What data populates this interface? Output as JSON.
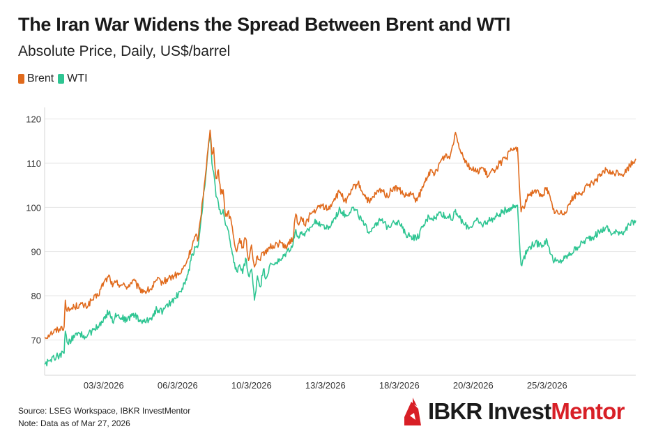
{
  "title": "The Iran War Widens the Spread Between Brent and WTI",
  "subtitle": "Absolute Price, Daily, US$/barrel",
  "legend": [
    {
      "name": "Brent",
      "color": "#e06a1c"
    },
    {
      "name": "WTI",
      "color": "#2ec592"
    }
  ],
  "footer": {
    "source": "Source: LSEG Workspace, IBKR InvestMentor",
    "note": "Note: Data as of Mar 27, 2026"
  },
  "logo": {
    "brand": "IBKR",
    "invest": "Invest",
    "mentor": "Mentor"
  },
  "chart_data": {
    "type": "line",
    "title": "The Iran War Widens the Spread Between Brent and WTI",
    "ylabel": "US$/barrel",
    "ylim": [
      62,
      122
    ],
    "yticks": [
      70,
      80,
      90,
      100,
      110,
      120
    ],
    "grid": true,
    "xlim": [
      0,
      100
    ],
    "xticks": [
      {
        "x": 10.0,
        "label": "03/3/2026"
      },
      {
        "x": 22.5,
        "label": "06/3/2026"
      },
      {
        "x": 35.0,
        "label": "10/3/2026"
      },
      {
        "x": 47.5,
        "label": "13/3/2026"
      },
      {
        "x": 60.0,
        "label": "18/3/2026"
      },
      {
        "x": 72.5,
        "label": "20/3/2026"
      },
      {
        "x": 85.0,
        "label": "25/3/2026"
      }
    ],
    "series": [
      {
        "name": "Brent",
        "color": "#e06a1c",
        "x": [
          0,
          1,
          2.5,
          3.3,
          3.5,
          3.8,
          5,
          6,
          7,
          8,
          9,
          10,
          11,
          11.5,
          12,
          13,
          14,
          15,
          16,
          17,
          18,
          19,
          20,
          21,
          22,
          23,
          24,
          25,
          25.5,
          26,
          27,
          28,
          28.3,
          28.6,
          29,
          29.4,
          29.8,
          30.2,
          30.6,
          31,
          31.5,
          32,
          32.5,
          33,
          33.5,
          34,
          34.5,
          35,
          35.5,
          36,
          36.5,
          37,
          37.5,
          38,
          39,
          40,
          41,
          42,
          42.5,
          43,
          43.5,
          44,
          45,
          46,
          47,
          48,
          49,
          50,
          51,
          52,
          53,
          54,
          55,
          56,
          57,
          58,
          59,
          60,
          61,
          62,
          63,
          64,
          65,
          66,
          67,
          68,
          68.5,
          69,
          69.5,
          70,
          71,
          72,
          73,
          74,
          75,
          76,
          77,
          78,
          79,
          80,
          80.3,
          80.6,
          81,
          82,
          83,
          84,
          85,
          86,
          87,
          88,
          89,
          90,
          91,
          92,
          93,
          94,
          95,
          96,
          97,
          98,
          99,
          100
        ],
        "values": [
          70.5,
          71.5,
          72.5,
          73.0,
          79.0,
          76.5,
          77.5,
          78.0,
          77.5,
          79.0,
          80.0,
          83.0,
          84.5,
          82.0,
          83.0,
          82.5,
          82.0,
          83.5,
          81.5,
          81.0,
          81.5,
          83.5,
          83.0,
          84.0,
          84.5,
          85.0,
          87.5,
          91.5,
          93.5,
          93.0,
          105.0,
          117.5,
          112.0,
          113.5,
          106.5,
          108.5,
          103.0,
          104.0,
          98.0,
          99.0,
          97.5,
          93.0,
          90.0,
          93.0,
          91.0,
          93.0,
          88.0,
          91.5,
          86.5,
          89.0,
          88.0,
          90.0,
          89.5,
          91.0,
          91.5,
          92.0,
          91.0,
          93.0,
          98.5,
          96.0,
          97.5,
          96.0,
          98.5,
          99.5,
          100.5,
          99.5,
          102.0,
          103.5,
          101.0,
          104.0,
          105.5,
          103.0,
          101.0,
          103.0,
          104.0,
          102.5,
          104.5,
          104.0,
          102.5,
          103.0,
          101.5,
          104.5,
          108.0,
          107.5,
          110.5,
          112.0,
          111.0,
          114.0,
          117.0,
          114.5,
          111.0,
          109.0,
          108.0,
          109.0,
          107.0,
          108.5,
          110.0,
          111.0,
          113.0,
          113.5,
          105.5,
          99.0,
          100.0,
          103.0,
          104.0,
          102.5,
          104.5,
          99.5,
          98.5,
          99.0,
          101.5,
          103.0,
          103.5,
          105.0,
          106.0,
          107.0,
          108.5,
          107.5,
          108.0,
          107.5,
          109.5,
          111.0
        ]
      },
      {
        "name": "WTI",
        "color": "#2ec592",
        "x": [
          0,
          1,
          2.5,
          3.3,
          3.5,
          3.8,
          5,
          6,
          7,
          8,
          9,
          10,
          11,
          11.5,
          12,
          13,
          14,
          15,
          16,
          17,
          18,
          19,
          20,
          21,
          22,
          23,
          24,
          25,
          25.5,
          26,
          27,
          28,
          28.3,
          28.6,
          29,
          29.4,
          29.8,
          30.2,
          30.6,
          31,
          31.5,
          32,
          32.5,
          33,
          33.5,
          34,
          34.5,
          35,
          35.5,
          36,
          36.5,
          37,
          37.5,
          38,
          39,
          40,
          41,
          42,
          42.5,
          43,
          43.5,
          44,
          45,
          46,
          47,
          48,
          49,
          50,
          51,
          52,
          53,
          54,
          55,
          56,
          57,
          58,
          59,
          60,
          61,
          62,
          63,
          64,
          65,
          66,
          67,
          68,
          68.5,
          69,
          69.5,
          70,
          71,
          72,
          73,
          74,
          75,
          76,
          77,
          78,
          79,
          80,
          80.3,
          80.6,
          81,
          82,
          83,
          84,
          85,
          86,
          87,
          88,
          89,
          90,
          91,
          92,
          93,
          94,
          95,
          96,
          97,
          98,
          99,
          100
        ],
        "values": [
          64.5,
          65.5,
          66.5,
          67.0,
          72.0,
          69.5,
          70.5,
          71.5,
          70.5,
          72.0,
          73.0,
          75.0,
          76.5,
          74.0,
          76.0,
          75.0,
          74.5,
          76.0,
          74.5,
          74.0,
          75.0,
          77.0,
          76.5,
          78.0,
          79.5,
          81.0,
          83.5,
          89.5,
          91.0,
          91.5,
          104.0,
          117.0,
          110.0,
          108.0,
          102.5,
          101.0,
          98.5,
          99.5,
          96.0,
          95.0,
          91.0,
          87.5,
          85.5,
          87.0,
          85.0,
          88.5,
          84.5,
          86.0,
          79.0,
          84.5,
          82.0,
          86.0,
          84.0,
          86.5,
          87.5,
          88.0,
          90.0,
          91.5,
          95.0,
          93.0,
          94.5,
          93.5,
          95.5,
          97.0,
          96.0,
          95.0,
          97.5,
          99.5,
          98.0,
          100.0,
          98.5,
          96.0,
          94.5,
          96.5,
          97.0,
          95.5,
          97.0,
          96.5,
          94.0,
          93.5,
          93.0,
          95.5,
          98.0,
          97.5,
          99.0,
          97.5,
          98.5,
          97.0,
          99.5,
          98.0,
          96.0,
          95.5,
          97.0,
          96.0,
          97.0,
          97.5,
          98.5,
          99.5,
          100.0,
          100.5,
          93.0,
          87.0,
          88.5,
          91.0,
          92.0,
          91.5,
          92.5,
          88.0,
          87.5,
          88.5,
          89.5,
          91.0,
          92.0,
          93.0,
          93.5,
          94.5,
          95.5,
          94.0,
          94.5,
          94.5,
          96.0,
          97.0
        ]
      }
    ]
  }
}
